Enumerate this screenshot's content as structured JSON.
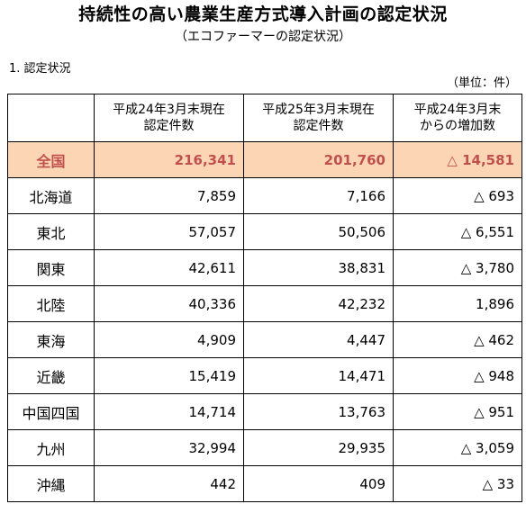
{
  "title": "持続性の高い農業生産方式導入計画の認定状況",
  "subtitle": "（エコファーマーの認定状況）",
  "section_heading": "1. 認定状況",
  "unit_note": "（単位：件）",
  "colors": {
    "total_row_bg": "#fcd5b4",
    "total_row_text": "#c0504d"
  },
  "table": {
    "headers": [
      {
        "line1": "",
        "line2": ""
      },
      {
        "line1": "平成24年3月末現在",
        "line2": "認定件数"
      },
      {
        "line1": "平成25年3月末現在",
        "line2": "認定件数"
      },
      {
        "line1": "平成24年3月末",
        "line2": "からの増加数"
      }
    ],
    "total": {
      "region": "全国",
      "h24": "216,341",
      "h25": "201,760",
      "change": "△ 14,581"
    },
    "rows": [
      {
        "region": "北海道",
        "h24": "7,859",
        "h25": "7,166",
        "change": "△ 693"
      },
      {
        "region": "東北",
        "h24": "57,057",
        "h25": "50,506",
        "change": "△ 6,551"
      },
      {
        "region": "関東",
        "h24": "42,611",
        "h25": "38,831",
        "change": "△ 3,780"
      },
      {
        "region": "北陸",
        "h24": "40,336",
        "h25": "42,232",
        "change": "1,896"
      },
      {
        "region": "東海",
        "h24": "4,909",
        "h25": "4,447",
        "change": "△ 462"
      },
      {
        "region": "近畿",
        "h24": "15,419",
        "h25": "14,471",
        "change": "△ 948"
      },
      {
        "region": "中国四国",
        "h24": "14,714",
        "h25": "13,763",
        "change": "△ 951"
      },
      {
        "region": "九州",
        "h24": "32,994",
        "h25": "29,935",
        "change": "△ 3,059"
      },
      {
        "region": "沖縄",
        "h24": "442",
        "h25": "409",
        "change": "△ 33"
      }
    ]
  }
}
